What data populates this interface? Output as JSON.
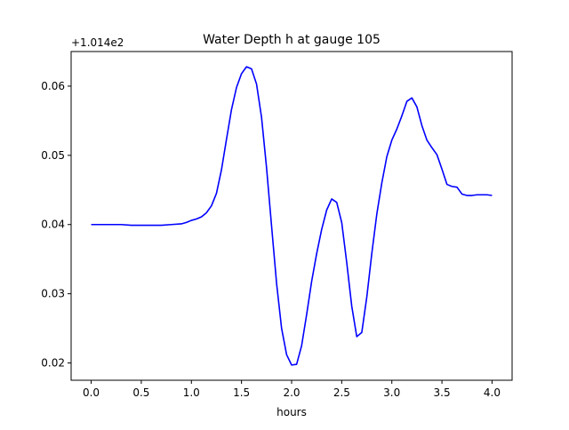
{
  "chart_data": {
    "type": "line",
    "title": "Water Depth h at gauge 105",
    "xlabel": "hours",
    "ylabel": "",
    "offset_label": "+1.014e2",
    "xlim": [
      -0.2,
      4.2
    ],
    "ylim": [
      0.0175,
      0.065
    ],
    "xticks": [
      0.0,
      0.5,
      1.0,
      1.5,
      2.0,
      2.5,
      3.0,
      3.5,
      4.0
    ],
    "xtick_labels": [
      "0.0",
      "0.5",
      "1.0",
      "1.5",
      "2.0",
      "2.5",
      "3.0",
      "3.5",
      "4.0"
    ],
    "yticks": [
      0.02,
      0.03,
      0.04,
      0.05,
      0.06
    ],
    "ytick_labels": [
      "0.02",
      "0.03",
      "0.04",
      "0.05",
      "0.06"
    ],
    "grid": false,
    "legend": "none",
    "series": [
      {
        "color": "#0000ff",
        "x": [
          0.0,
          0.1,
          0.2,
          0.3,
          0.4,
          0.5,
          0.6,
          0.7,
          0.8,
          0.9,
          0.95,
          1.0,
          1.05,
          1.1,
          1.15,
          1.2,
          1.25,
          1.3,
          1.35,
          1.4,
          1.45,
          1.5,
          1.55,
          1.6,
          1.65,
          1.7,
          1.75,
          1.8,
          1.85,
          1.9,
          1.95,
          2.0,
          2.05,
          2.1,
          2.15,
          2.2,
          2.25,
          2.3,
          2.35,
          2.4,
          2.45,
          2.5,
          2.55,
          2.6,
          2.65,
          2.7,
          2.75,
          2.8,
          2.85,
          2.9,
          2.95,
          3.0,
          3.05,
          3.1,
          3.15,
          3.2,
          3.25,
          3.3,
          3.35,
          3.4,
          3.45,
          3.5,
          3.55,
          3.6,
          3.65,
          3.7,
          3.75,
          3.8,
          3.85,
          3.9,
          3.95,
          4.0
        ],
        "y": [
          0.04,
          0.04,
          0.04,
          0.04,
          0.0399,
          0.0399,
          0.0399,
          0.0399,
          0.04,
          0.0401,
          0.0403,
          0.0406,
          0.0408,
          0.0411,
          0.0417,
          0.0427,
          0.0445,
          0.0479,
          0.0523,
          0.0566,
          0.0598,
          0.0618,
          0.0628,
          0.0625,
          0.0603,
          0.0555,
          0.0482,
          0.0398,
          0.0315,
          0.025,
          0.0212,
          0.0197,
          0.0198,
          0.0225,
          0.027,
          0.0318,
          0.0358,
          0.0393,
          0.0421,
          0.0437,
          0.0432,
          0.0403,
          0.0345,
          0.0282,
          0.0238,
          0.0244,
          0.0295,
          0.0358,
          0.0415,
          0.046,
          0.0498,
          0.0522,
          0.0538,
          0.0557,
          0.0578,
          0.0583,
          0.057,
          0.0543,
          0.0522,
          0.0511,
          0.0501,
          0.048,
          0.0458,
          0.0455,
          0.0454,
          0.0444,
          0.0442,
          0.0442,
          0.0443,
          0.0443,
          0.0443,
          0.0442
        ]
      }
    ]
  }
}
